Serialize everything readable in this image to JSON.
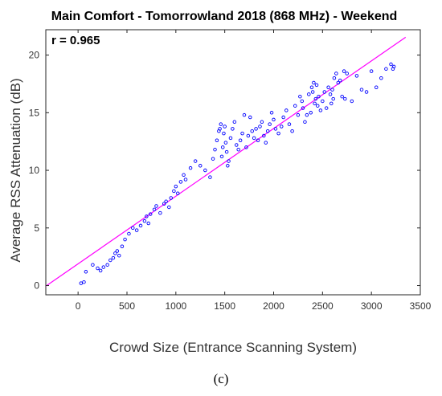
{
  "chart_data": {
    "type": "scatter",
    "title": "Main Comfort - Tomorrowland 2018 (868 MHz) - Weekend",
    "xlabel": "Crowd Size (Entrance Scanning System)",
    "ylabel": "Average RSS Attenuation (dB)",
    "annotation": "r = 0.965",
    "caption": "(c)",
    "xlim": [
      -330,
      3500
    ],
    "ylim": [
      -0.8,
      22.2
    ],
    "xticks": [
      0,
      500,
      1000,
      1500,
      2000,
      2500,
      3000,
      3500
    ],
    "yticks": [
      0,
      5,
      10,
      15,
      20
    ],
    "grid": false,
    "colors": {
      "points": "#0000ff",
      "fit": "#ff00ff"
    },
    "fit_line": {
      "x": [
        -330,
        3350
      ],
      "y": [
        -0.05,
        21.55
      ]
    },
    "points": {
      "x": [
        30,
        60,
        80,
        150,
        200,
        230,
        260,
        300,
        330,
        360,
        380,
        400,
        420,
        450,
        480,
        520,
        560,
        600,
        640,
        680,
        700,
        720,
        740,
        780,
        800,
        840,
        880,
        900,
        930,
        950,
        980,
        1000,
        1020,
        1050,
        1080,
        1100,
        1150,
        1200,
        1250,
        1300,
        1350,
        1380,
        1400,
        1420,
        1440,
        1450,
        1460,
        1470,
        1480,
        1490,
        1500,
        1510,
        1520,
        1530,
        1540,
        1560,
        1580,
        1600,
        1620,
        1640,
        1660,
        1680,
        1700,
        1720,
        1740,
        1760,
        1780,
        1800,
        1820,
        1840,
        1860,
        1880,
        1900,
        1920,
        1940,
        1960,
        1980,
        2000,
        2020,
        2050,
        2080,
        2100,
        2130,
        2160,
        2190,
        2220,
        2250,
        2270,
        2290,
        2300,
        2320,
        2340,
        2360,
        2380,
        2390,
        2400,
        2410,
        2420,
        2430,
        2440,
        2450,
        2460,
        2480,
        2500,
        2520,
        2540,
        2560,
        2580,
        2590,
        2600,
        2610,
        2620,
        2640,
        2660,
        2680,
        2700,
        2720,
        2730,
        2750,
        2800,
        2850,
        2900,
        2950,
        3000,
        3050,
        3100,
        3150,
        3200,
        3220,
        3230
      ],
      "y": [
        0.2,
        0.3,
        1.2,
        1.8,
        1.5,
        1.3,
        1.6,
        1.8,
        2.2,
        2.4,
        2.8,
        3.0,
        2.6,
        3.4,
        4.0,
        4.5,
        5.0,
        4.8,
        5.2,
        5.6,
        6.0,
        5.4,
        6.2,
        6.6,
        6.9,
        6.3,
        7.1,
        7.3,
        6.8,
        7.6,
        8.2,
        8.6,
        8.0,
        9.0,
        9.6,
        9.2,
        10.2,
        10.8,
        10.4,
        10.0,
        9.4,
        11.0,
        11.8,
        12.6,
        13.4,
        13.6,
        14.0,
        11.2,
        12.0,
        13.2,
        13.8,
        12.4,
        11.6,
        10.4,
        10.8,
        12.8,
        13.6,
        14.2,
        12.2,
        11.8,
        12.6,
        13.2,
        14.8,
        12.0,
        13.0,
        14.6,
        13.4,
        12.8,
        13.6,
        12.6,
        13.8,
        14.2,
        13.0,
        12.4,
        13.4,
        14.0,
        15.0,
        14.4,
        13.6,
        13.2,
        13.8,
        14.6,
        15.2,
        14.0,
        13.4,
        15.6,
        14.8,
        16.4,
        16.0,
        15.4,
        14.2,
        14.8,
        16.6,
        15.0,
        17.2,
        16.8,
        17.6,
        15.8,
        16.2,
        17.4,
        15.6,
        16.4,
        15.2,
        16.0,
        16.8,
        15.4,
        17.2,
        16.6,
        15.8,
        17.0,
        16.2,
        18.0,
        18.4,
        17.6,
        17.8,
        16.4,
        18.6,
        16.2,
        18.4,
        16.0,
        18.2,
        17.0,
        16.8,
        18.6,
        17.2,
        18.0,
        18.8,
        19.2,
        18.8,
        19.0
      ]
    }
  }
}
